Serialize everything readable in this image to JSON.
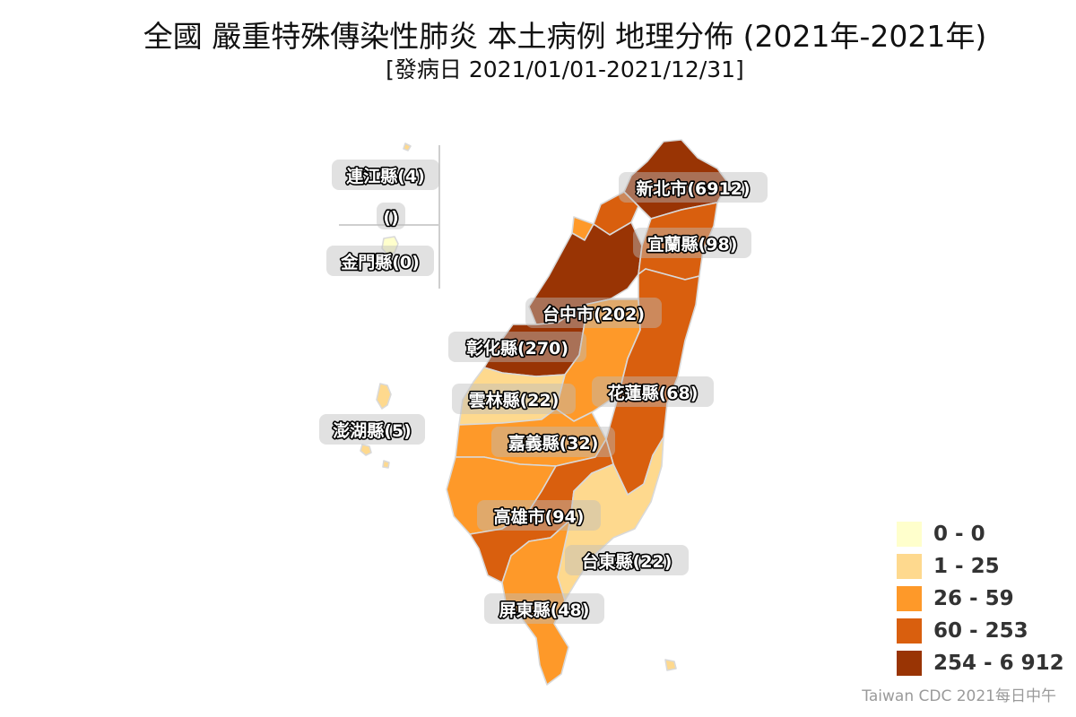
{
  "title": "全國 嚴重特殊傳染性肺炎 本土病例 地理分佈 (2021年-2021年)",
  "subtitle": "[發病日 2021/01/01-2021/12/31]",
  "source": "Taiwan CDC 2021每日中午",
  "legend": [
    {
      "label": "0 - 0",
      "color": "#ffffcc"
    },
    {
      "label": "1 - 25",
      "color": "#fed98e"
    },
    {
      "label": "26 - 59",
      "color": "#fe9929"
    },
    {
      "label": "60 - 253",
      "color": "#d95f0e"
    },
    {
      "label": "254 - 6 912",
      "color": "#993404"
    }
  ],
  "labels": {
    "lienchiang": "連江縣(4)",
    "unknown": "()",
    "kinmen": "金門縣(0)",
    "penghu": "澎湖縣(5)",
    "new_taipei": "新北市(6912)",
    "yilan": "宜蘭縣(98)",
    "taichung": "台中市(202)",
    "changhua": "彰化縣(270)",
    "yunlin": "雲林縣(22)",
    "hualien": "花蓮縣(68)",
    "chiayi": "嘉義縣(32)",
    "kaohsiung": "高雄市(94)",
    "taitung": "台東縣(22)",
    "pingtung": "屏東縣(48)"
  }
}
